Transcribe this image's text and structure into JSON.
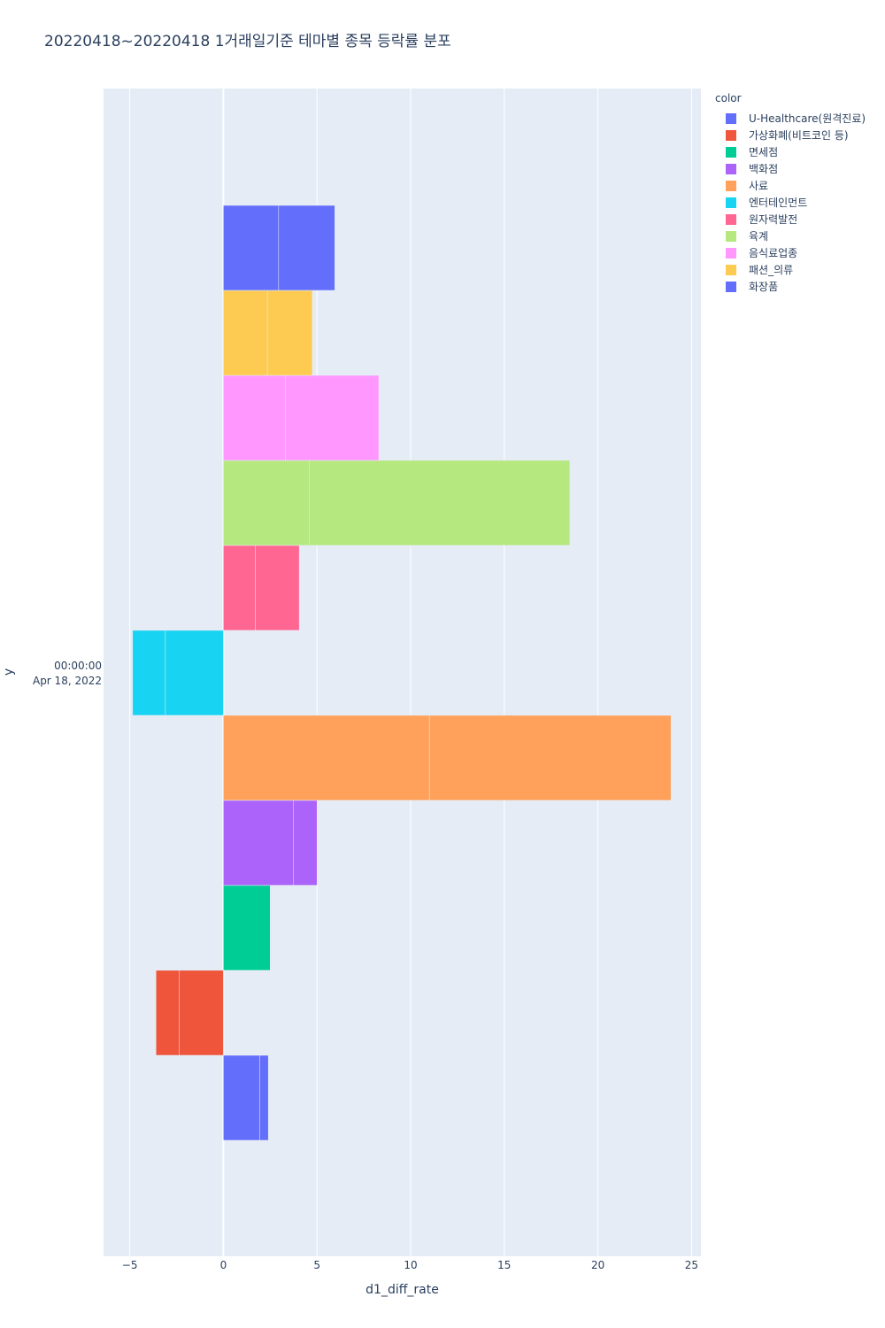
{
  "chart_data": {
    "type": "bar",
    "orientation": "horizontal",
    "barmode": "stacked",
    "title": "20220418~20220418 1거래일기준 테마별 종목 등락률 분포",
    "xlabel": "d1_diff_rate",
    "ylabel": "y",
    "y_tick_line1": "00:00:00",
    "y_tick_line2": "Apr 18, 2022",
    "xlim": [
      -6.4,
      25.5
    ],
    "x_ticks": [
      -5,
      0,
      5,
      10,
      15,
      20,
      25
    ],
    "x_tick_labels": [
      "−5",
      "0",
      "5",
      "10",
      "15",
      "20",
      "25"
    ],
    "legend_title": "color",
    "legend_position": "right",
    "grid": true,
    "categories": [
      "U-Healthcare(원격진료)",
      "가상화폐(비트코인 등)",
      "면세점",
      "백화점",
      "사료",
      "엔터테인먼트",
      "원자력발전",
      "육계",
      "음식료업종",
      "패션_의류",
      "화장품"
    ],
    "colors": [
      "#636efa",
      "#ef553b",
      "#00cc96",
      "#ab63fa",
      "#ffa15a",
      "#19d3f3",
      "#ff6692",
      "#b6e880",
      "#ff97ff",
      "#fecb52",
      "#636efa"
    ],
    "series": [
      {
        "name": "U-Healthcare(원격진료)",
        "segments": [
          1.95,
          0.45
        ]
      },
      {
        "name": "가상화폐(비트코인 등)",
        "segments": [
          -2.35,
          -1.25
        ]
      },
      {
        "name": "면세점",
        "segments": [
          2.5
        ]
      },
      {
        "name": "백화점",
        "segments": [
          3.75,
          1.25
        ]
      },
      {
        "name": "사료",
        "segments": [
          11.0,
          12.9
        ]
      },
      {
        "name": "엔터테인먼트",
        "segments": [
          -3.1,
          -1.75
        ]
      },
      {
        "name": "원자력발전",
        "segments": [
          1.7,
          2.35
        ]
      },
      {
        "name": "육계",
        "segments": [
          4.6,
          13.9
        ]
      },
      {
        "name": "음식료업종",
        "segments": [
          3.3,
          5.0
        ]
      },
      {
        "name": "패션_의류",
        "segments": [
          2.35,
          2.4
        ]
      },
      {
        "name": "화장품",
        "segments": [
          2.95,
          3.0
        ]
      }
    ]
  }
}
